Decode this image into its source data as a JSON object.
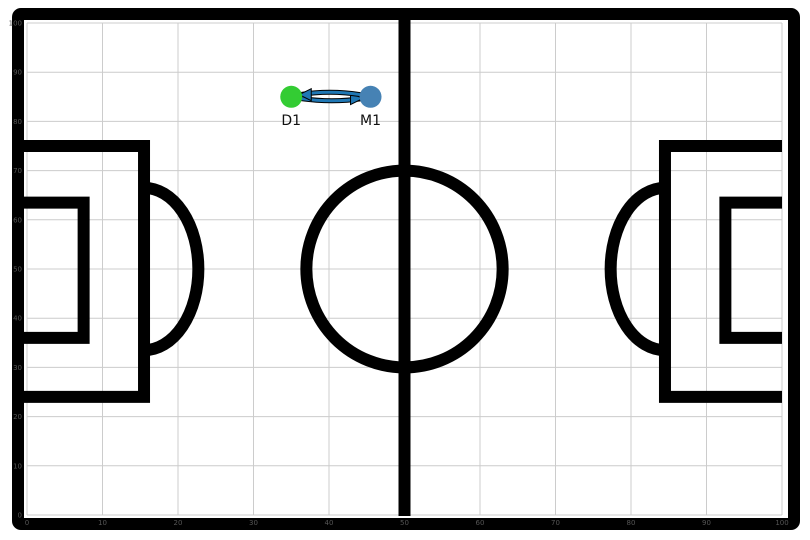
{
  "chart_data": {
    "type": "scatter",
    "title": "",
    "xlabel": "",
    "ylabel": "",
    "xlim": [
      0,
      100
    ],
    "ylim": [
      0,
      100
    ],
    "grid": true,
    "x_ticks": [
      "0",
      "10",
      "20",
      "30",
      "40",
      "50",
      "60",
      "70",
      "80",
      "90",
      "100"
    ],
    "y_ticks": [
      "0",
      "10",
      "20",
      "30",
      "40",
      "50",
      "60",
      "70",
      "80",
      "90",
      "100"
    ],
    "players": [
      {
        "label": "D1",
        "x": 35,
        "y": 85,
        "color": "#33cc33"
      },
      {
        "label": "M1",
        "x": 45.5,
        "y": 85,
        "color": "#4682b4"
      }
    ],
    "passes": [
      {
        "from": "D1",
        "to": "M1",
        "color": "#1f77b4"
      },
      {
        "from": "M1",
        "to": "D1",
        "color": "#1f77b4"
      }
    ]
  },
  "colors": {
    "pitch_lines": "#000000",
    "grid": "#cccccc",
    "background": "#ffffff"
  }
}
